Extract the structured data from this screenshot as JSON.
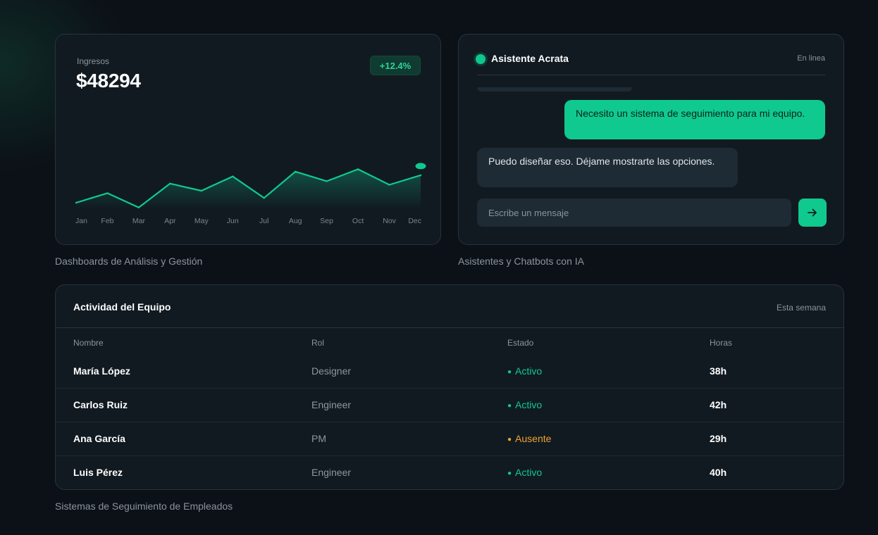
{
  "revenue": {
    "label": "Ingresos",
    "value": "$48294",
    "change": "+12.4%",
    "accent": "#10c98e"
  },
  "chart_data": {
    "type": "area",
    "categories": [
      "Jan",
      "Feb",
      "Mar",
      "Apr",
      "May",
      "Jun",
      "Jul",
      "Aug",
      "Sep",
      "Oct",
      "Nov",
      "Dec"
    ],
    "series": [
      {
        "values": [
          30,
          38,
          26,
          46,
          40,
          52,
          34,
          56,
          48,
          58,
          45,
          53
        ]
      }
    ],
    "title": "",
    "xlabel": "",
    "ylabel": "",
    "ylim": [
      0,
      100
    ],
    "grid": false,
    "legend": "none"
  },
  "captions": {
    "dashboards": "Dashboards de Análisis y Gestión",
    "chatbots": "Asistentes y Chatbots con IA",
    "tracking": "Sistemas de Seguimiento de Empleados"
  },
  "chat": {
    "title": "Asistente Acrata",
    "status": "En linea",
    "user_message": "Necesito un sistema de seguimiento para mi equipo.",
    "bot_message": "Puedo diseñar eso. Déjame mostrarte las opciones.",
    "input_placeholder": "Escribe un mensaje",
    "send_icon": "arrow-right-icon"
  },
  "team": {
    "title": "Actividad del Equipo",
    "range": "Esta semana",
    "columns": [
      "Nombre",
      "Rol",
      "Estado",
      "Horas"
    ],
    "rows": [
      {
        "name": "María López",
        "role": "Designer",
        "status": "Activo",
        "status_color": "#10c98e",
        "hours": "38h"
      },
      {
        "name": "Carlos Ruiz",
        "role": "Engineer",
        "status": "Activo",
        "status_color": "#10c98e",
        "hours": "42h"
      },
      {
        "name": "Ana García",
        "role": "PM",
        "status": "Ausente",
        "status_color": "#f0a22e",
        "hours": "29h"
      },
      {
        "name": "Luis Pérez",
        "role": "Engineer",
        "status": "Activo",
        "status_color": "#10c98e",
        "hours": "40h"
      }
    ]
  }
}
